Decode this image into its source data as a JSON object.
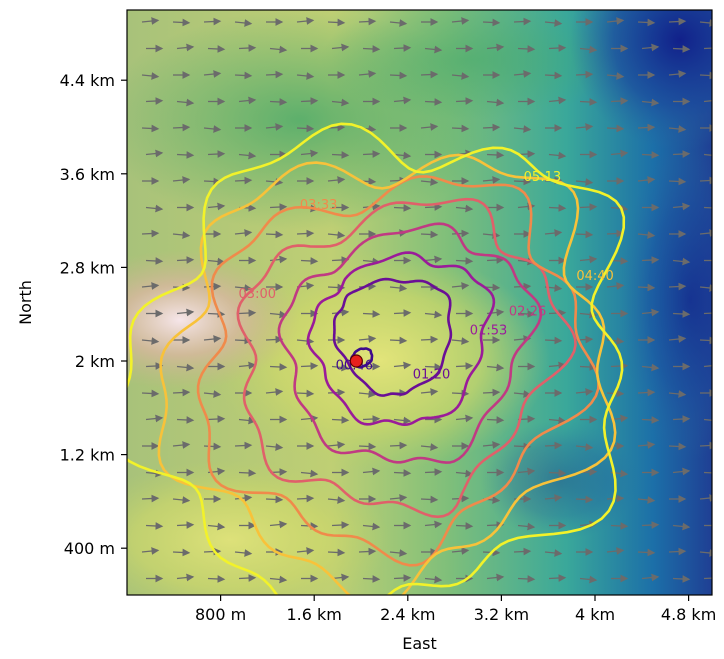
{
  "chart_data": {
    "type": "contour",
    "title": "",
    "xlabel": "East",
    "ylabel": "North",
    "x_ticks": [
      {
        "value": 800,
        "label": "800 m"
      },
      {
        "value": 1600,
        "label": "1.6 km"
      },
      {
        "value": 2400,
        "label": "2.4 km"
      },
      {
        "value": 3200,
        "label": "3.2 km"
      },
      {
        "value": 4000,
        "label": "4 km"
      },
      {
        "value": 4800,
        "label": "4.8 km"
      }
    ],
    "y_ticks": [
      {
        "value": 400,
        "label": "400 m"
      },
      {
        "value": 1200,
        "label": "1.2 km"
      },
      {
        "value": 2000,
        "label": "2 km"
      },
      {
        "value": 2800,
        "label": "2.8 km"
      },
      {
        "value": 3600,
        "label": "3.6 km"
      },
      {
        "value": 4400,
        "label": "4.4 km"
      }
    ],
    "xlim": [
      0,
      5000
    ],
    "ylim": [
      0,
      5000
    ],
    "ignition_point": {
      "x": 1960,
      "y": 2000,
      "color": "#e8201c"
    },
    "wind_direction": "east",
    "background": "terrain elevation shading",
    "contour_levels": [
      {
        "label": "00:46",
        "color": "#3e0a8c"
      },
      {
        "label": "01:20",
        "color": "#6a0f96"
      },
      {
        "label": "01:53",
        "color": "#9a1b9a"
      },
      {
        "label": "02:26",
        "color": "#c03a83"
      },
      {
        "label": "03:00",
        "color": "#e0606a"
      },
      {
        "label": "03:33",
        "color": "#f08a4b"
      },
      {
        "label": "04:40",
        "color": "#f8c23a"
      },
      {
        "label": "05:13",
        "color": "#f2f22a"
      }
    ]
  }
}
